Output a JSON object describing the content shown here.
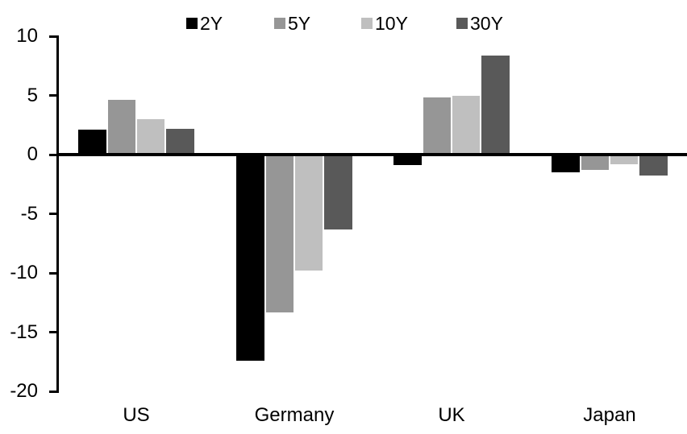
{
  "chart_data": {
    "type": "bar",
    "title": "",
    "categories": [
      "US",
      "Germany",
      "UK",
      "Japan"
    ],
    "series": [
      {
        "name": "2Y",
        "color": "#000000",
        "values": [
          2.1,
          -17.4,
          -0.9,
          -1.5
        ]
      },
      {
        "name": "5Y",
        "color": "#969696",
        "values": [
          4.6,
          -13.3,
          4.8,
          -1.3
        ]
      },
      {
        "name": "10Y",
        "color": "#bfbfbf",
        "values": [
          3.0,
          -9.8,
          5.0,
          -0.8
        ]
      },
      {
        "name": "30Y",
        "color": "#595959",
        "values": [
          2.2,
          -6.3,
          8.4,
          -1.8
        ]
      }
    ],
    "ylim": [
      -20,
      10
    ],
    "yticks": [
      10,
      5,
      0,
      -5,
      -10,
      -15,
      -20
    ],
    "ytick_labels": [
      "10",
      "5",
      "0",
      "-5",
      "-10",
      "-15",
      "-20"
    ],
    "xlabel": "",
    "ylabel": "",
    "grid": false,
    "legend_position": "top",
    "axis_color": "#000000",
    "background_color": "#ffffff"
  }
}
